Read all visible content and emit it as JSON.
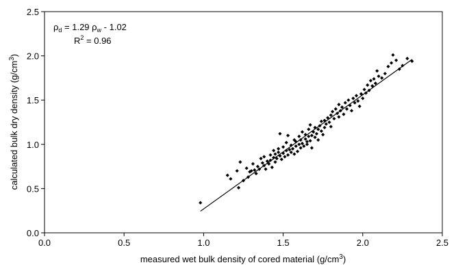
{
  "chart_data": {
    "type": "scatter",
    "title": "",
    "xlabel_main": "measured wet bulk density of cored material (g/cm",
    "xlabel_sup": "3",
    "xlabel_end": ")",
    "ylabel_main": "calculated bulk dry density (g/cm",
    "ylabel_sup": "3",
    "ylabel_end": ")",
    "xlim": [
      0.0,
      2.5
    ],
    "ylim": [
      0.0,
      2.5
    ],
    "xticks": [
      "0.0",
      "0.5",
      "1.0",
      "1.5",
      "2.0",
      "2.5"
    ],
    "yticks": [
      "0.0",
      "0.5",
      "1.0",
      "1.5",
      "2.0",
      "2.5"
    ],
    "grid": false,
    "equation": {
      "rho": "ρ",
      "d_sub": "d",
      "middle": " = 1.29 ρ",
      "w_sub": "w",
      "end": " - 1.02"
    },
    "r2": {
      "prefix": "R",
      "sup": "2",
      "value": " = 0.96"
    },
    "fit_line": {
      "slope": 1.29,
      "intercept": -1.02,
      "x_range": [
        0.98,
        2.31
      ]
    },
    "points": [
      [
        0.98,
        0.34
      ],
      [
        1.15,
        0.65
      ],
      [
        1.17,
        0.61
      ],
      [
        1.21,
        0.7
      ],
      [
        1.22,
        0.51
      ],
      [
        1.23,
        0.8
      ],
      [
        1.25,
        0.59
      ],
      [
        1.27,
        0.73
      ],
      [
        1.28,
        0.63
      ],
      [
        1.29,
        0.69
      ],
      [
        1.3,
        0.7
      ],
      [
        1.31,
        0.78
      ],
      [
        1.32,
        0.71
      ],
      [
        1.33,
        0.67
      ],
      [
        1.34,
        0.75
      ],
      [
        1.35,
        0.72
      ],
      [
        1.36,
        0.84
      ],
      [
        1.37,
        0.79
      ],
      [
        1.38,
        0.76
      ],
      [
        1.38,
        0.86
      ],
      [
        1.39,
        0.72
      ],
      [
        1.4,
        0.81
      ],
      [
        1.41,
        0.78
      ],
      [
        1.42,
        0.88
      ],
      [
        1.42,
        0.82
      ],
      [
        1.43,
        0.74
      ],
      [
        1.44,
        0.85
      ],
      [
        1.44,
        0.93
      ],
      [
        1.45,
        0.8
      ],
      [
        1.45,
        0.89
      ],
      [
        1.46,
        0.84
      ],
      [
        1.47,
        0.91
      ],
      [
        1.47,
        0.95
      ],
      [
        1.48,
        0.87
      ],
      [
        1.48,
        1.12
      ],
      [
        1.49,
        0.83
      ],
      [
        1.5,
        0.9
      ],
      [
        1.5,
        0.97
      ],
      [
        1.51,
        0.86
      ],
      [
        1.52,
        0.93
      ],
      [
        1.52,
        1.02
      ],
      [
        1.53,
        0.88
      ],
      [
        1.53,
        1.1
      ],
      [
        1.54,
        0.94
      ],
      [
        1.55,
        0.91
      ],
      [
        1.55,
        0.99
      ],
      [
        1.56,
        0.95
      ],
      [
        1.57,
        1.05
      ],
      [
        1.57,
        0.89
      ],
      [
        1.58,
        0.98
      ],
      [
        1.58,
        1.03
      ],
      [
        1.59,
        0.92
      ],
      [
        1.6,
        1.0
      ],
      [
        1.6,
        1.09
      ],
      [
        1.61,
        0.96
      ],
      [
        1.61,
        1.05
      ],
      [
        1.62,
        1.01
      ],
      [
        1.62,
        1.14
      ],
      [
        1.63,
        0.98
      ],
      [
        1.64,
        1.06
      ],
      [
        1.64,
        1.11
      ],
      [
        1.65,
        1.03
      ],
      [
        1.65,
        1.0
      ],
      [
        1.66,
        1.09
      ],
      [
        1.66,
        1.17
      ],
      [
        1.67,
        1.04
      ],
      [
        1.67,
        1.22
      ],
      [
        1.68,
        1.1
      ],
      [
        1.68,
        0.96
      ],
      [
        1.69,
        1.14
      ],
      [
        1.7,
        1.08
      ],
      [
        1.7,
        1.19
      ],
      [
        1.71,
        1.12
      ],
      [
        1.72,
        1.17
      ],
      [
        1.72,
        1.05
      ],
      [
        1.73,
        1.21
      ],
      [
        1.74,
        1.15
      ],
      [
        1.74,
        1.26
      ],
      [
        1.75,
        1.11
      ],
      [
        1.76,
        1.19
      ],
      [
        1.76,
        1.27
      ],
      [
        1.77,
        1.23
      ],
      [
        1.78,
        1.3
      ],
      [
        1.79,
        1.25
      ],
      [
        1.8,
        1.33
      ],
      [
        1.8,
        1.2
      ],
      [
        1.81,
        1.37
      ],
      [
        1.82,
        1.29
      ],
      [
        1.83,
        1.4
      ],
      [
        1.84,
        1.35
      ],
      [
        1.85,
        1.31
      ],
      [
        1.85,
        1.45
      ],
      [
        1.86,
        1.38
      ],
      [
        1.87,
        1.42
      ],
      [
        1.88,
        1.34
      ],
      [
        1.89,
        1.47
      ],
      [
        1.9,
        1.4
      ],
      [
        1.91,
        1.5
      ],
      [
        1.92,
        1.44
      ],
      [
        1.93,
        1.38
      ],
      [
        1.94,
        1.52
      ],
      [
        1.95,
        1.47
      ],
      [
        1.96,
        1.55
      ],
      [
        1.97,
        1.49
      ],
      [
        1.98,
        1.43
      ],
      [
        1.99,
        1.57
      ],
      [
        2.0,
        1.52
      ],
      [
        2.01,
        1.62
      ],
      [
        2.02,
        1.58
      ],
      [
        2.03,
        1.67
      ],
      [
        2.04,
        1.61
      ],
      [
        2.05,
        1.72
      ],
      [
        2.06,
        1.66
      ],
      [
        2.07,
        1.74
      ],
      [
        2.08,
        1.69
      ],
      [
        2.09,
        1.83
      ],
      [
        2.1,
        1.77
      ],
      [
        2.12,
        1.75
      ],
      [
        2.14,
        1.8
      ],
      [
        2.16,
        1.88
      ],
      [
        2.18,
        1.92
      ],
      [
        2.19,
        2.01
      ],
      [
        2.21,
        1.95
      ],
      [
        2.23,
        1.85
      ],
      [
        2.25,
        1.89
      ],
      [
        2.28,
        1.97
      ],
      [
        2.31,
        1.94
      ]
    ]
  }
}
